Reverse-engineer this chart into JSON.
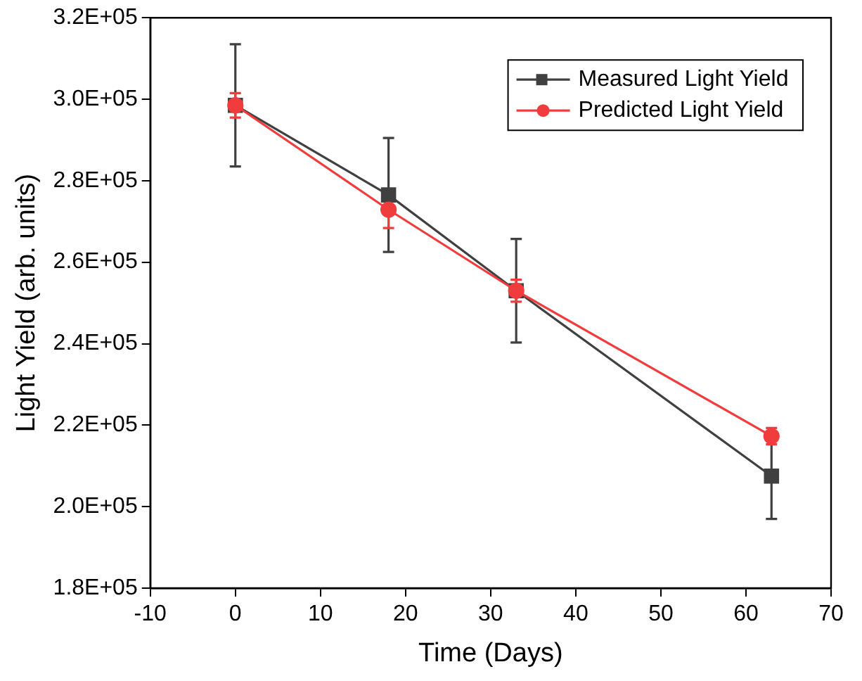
{
  "chart_data": {
    "type": "line",
    "xlabel": "Time (Days)",
    "ylabel": "Light Yield (arb. units)",
    "x": [
      0,
      18,
      33,
      63
    ],
    "xlim": [
      -10,
      70
    ],
    "xticks": [
      -10,
      0,
      10,
      20,
      30,
      40,
      50,
      60,
      70
    ],
    "ylim": [
      180000,
      320000
    ],
    "yticks": [
      {
        "value": 180000,
        "label": "1.8E+05"
      },
      {
        "value": 200000,
        "label": "2.0E+05"
      },
      {
        "value": 220000,
        "label": "2.2E+05"
      },
      {
        "value": 240000,
        "label": "2.4E+05"
      },
      {
        "value": 260000,
        "label": "2.6E+05"
      },
      {
        "value": 280000,
        "label": "2.8E+05"
      },
      {
        "value": 300000,
        "label": "3.0E+05"
      },
      {
        "value": 320000,
        "label": "3.2E+05"
      }
    ],
    "series": [
      {
        "name": "Measured Light Yield",
        "color": "#404040",
        "marker": "square",
        "values": [
          298500,
          276500,
          253000,
          207500
        ],
        "errors": [
          15000,
          14000,
          12700,
          10500
        ]
      },
      {
        "name": "Predicted Light Yield",
        "color": "#f03c3c",
        "marker": "circle",
        "values": [
          298500,
          272900,
          253000,
          217300
        ],
        "errors": [
          3000,
          4500,
          2700,
          2000
        ]
      }
    ],
    "legend": "top right",
    "grid": false
  }
}
